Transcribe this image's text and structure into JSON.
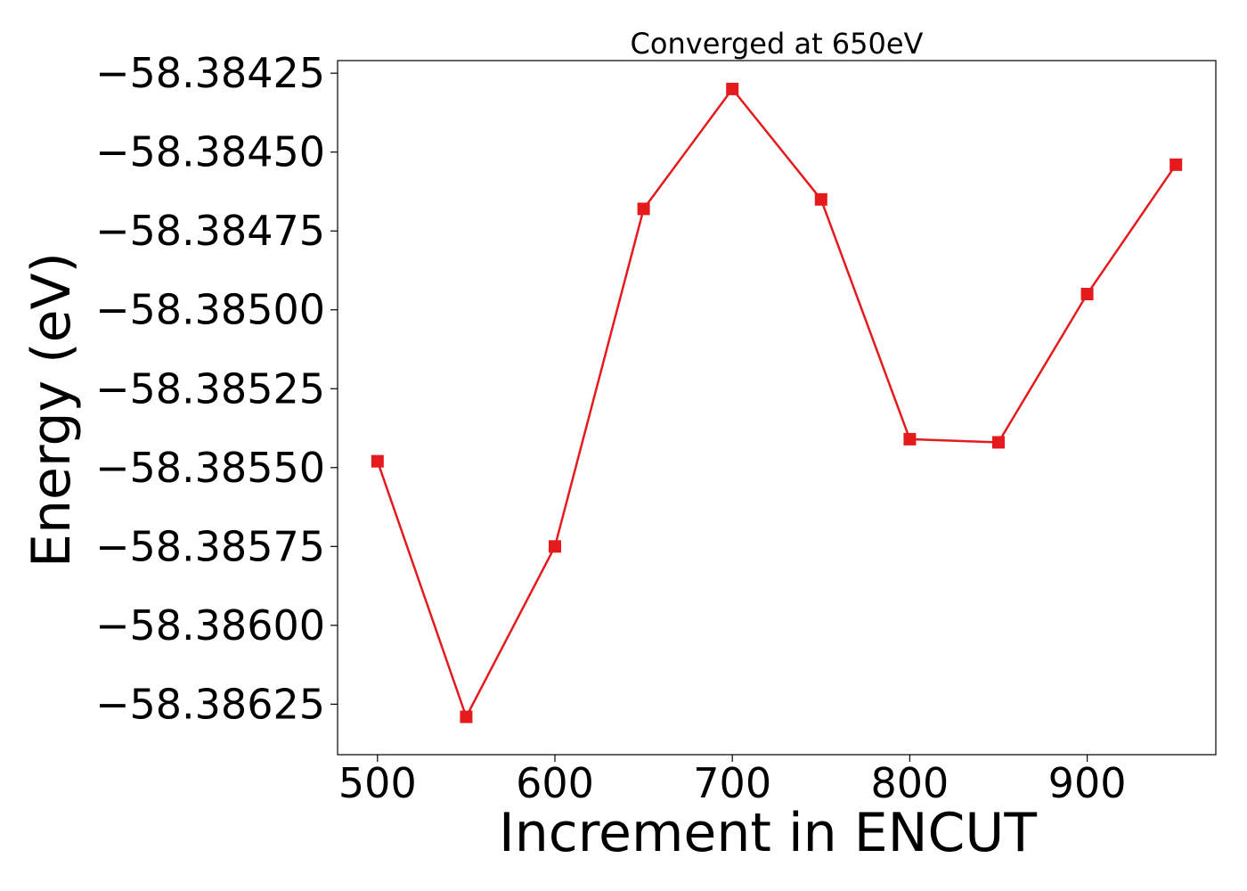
{
  "chart_data": {
    "type": "line",
    "title": "Converged at 650eV",
    "xlabel": "Increment in ENCUT",
    "ylabel": "Energy (eV)",
    "xlim": [
      477.5,
      972.5
    ],
    "ylim": [
      -58.38641,
      -58.38421
    ],
    "x_ticks": [
      500,
      600,
      700,
      800,
      900
    ],
    "x_tick_labels": [
      "500",
      "600",
      "700",
      "800",
      "900"
    ],
    "y_ticks": [
      -58.38425,
      -58.3845,
      -58.38475,
      -58.385,
      -58.38525,
      -58.3855,
      -58.38575,
      -58.386,
      -58.38625
    ],
    "y_tick_labels": [
      "−58.38425",
      "−58.38450",
      "−58.38475",
      "−58.38500",
      "−58.38525",
      "−58.38550",
      "−58.38575",
      "−58.38600",
      "−58.38625"
    ],
    "grid": false,
    "series": [
      {
        "color": "#e41a1c",
        "marker": "square",
        "x": [
          500,
          550,
          600,
          650,
          700,
          750,
          800,
          850,
          900,
          950
        ],
        "y": [
          -58.38548,
          -58.38629,
          -58.38575,
          -58.38468,
          -58.3843,
          -58.38465,
          -58.38541,
          -58.38542,
          -58.38495,
          -58.38454
        ]
      }
    ]
  }
}
